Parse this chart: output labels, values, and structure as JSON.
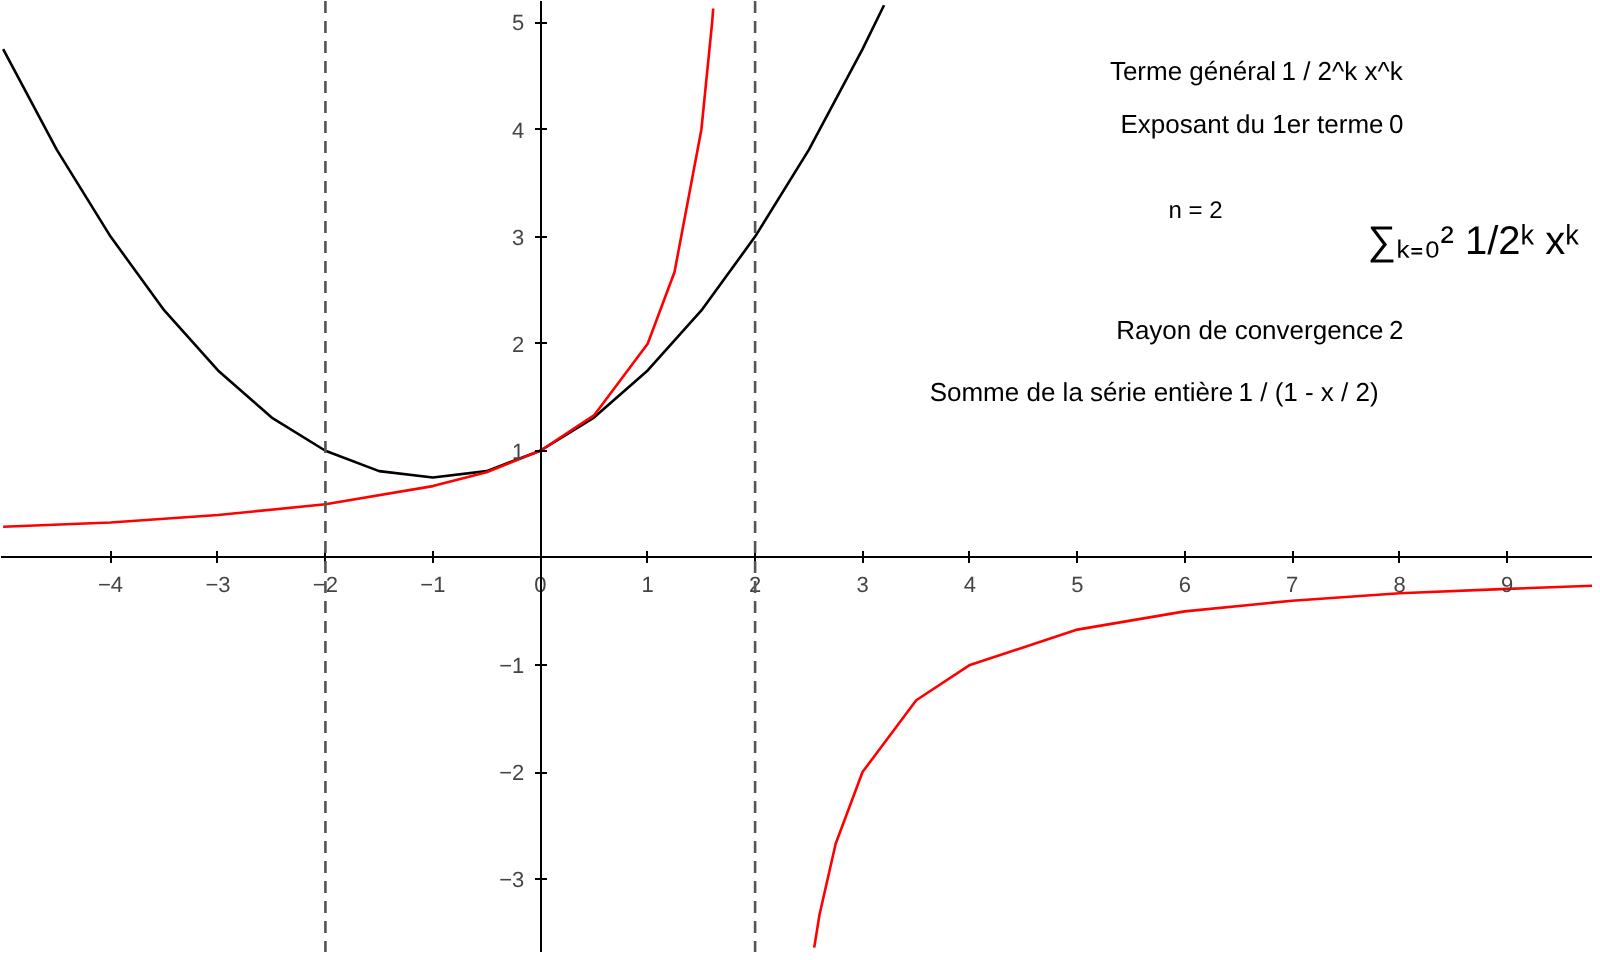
{
  "chart_data": {
    "type": "line",
    "xlim": [
      -5.02,
      9.8
    ],
    "ylim": [
      -3.69,
      5.2
    ],
    "xticks": [
      {
        "value": -4,
        "label": "−4"
      },
      {
        "value": -3,
        "label": "−3"
      },
      {
        "value": -2,
        "label": "−2"
      },
      {
        "value": -1,
        "label": "−1"
      },
      0,
      1,
      2,
      3,
      4,
      5,
      6,
      7,
      8,
      9
    ],
    "yticks": [
      {
        "value": -3,
        "label": "−3"
      },
      {
        "value": -2,
        "label": "−2"
      },
      {
        "value": -1,
        "label": "−1"
      },
      1,
      2,
      3,
      4,
      5
    ],
    "grid": false,
    "marker": "none",
    "line_style": "solid",
    "series": [
      {
        "color": "#000000",
        "x": [
          -5,
          -4.5,
          -4,
          -3.5,
          -3,
          -2.5,
          -2,
          -1.5,
          -1,
          -0.5,
          0,
          0.5,
          1,
          1.5,
          2,
          2.5,
          3,
          3.2
        ],
        "values": [
          4.75,
          3.81,
          3,
          2.31,
          1.75,
          1.31,
          1,
          0.81,
          0.75,
          0.81,
          1,
          1.31,
          1.75,
          2.31,
          3,
          3.81,
          4.75,
          5.16
        ]
      },
      {
        "color": "#ff0000",
        "x": [
          -5,
          -4,
          -3,
          -2,
          -1,
          -0.5,
          0,
          0.5,
          1,
          1.25,
          1.5,
          1.6,
          1.61,
          2,
          2.55,
          2.6,
          2.75,
          3,
          3.5,
          4,
          5,
          6,
          7,
          8,
          9,
          9.8
        ],
        "values": [
          0.29,
          0.33,
          0.4,
          0.5,
          0.67,
          0.8,
          1,
          1.33,
          2,
          2.67,
          4,
          5,
          5.13,
          null,
          -3.64,
          -3.33,
          -2.67,
          -2,
          -1.33,
          -1,
          -0.67,
          -0.5,
          -0.4,
          -0.33,
          -0.29,
          -0.26
        ]
      }
    ],
    "ref_lines": [
      {
        "axis": "x",
        "value": -2,
        "color": "#555555",
        "line_style": "dashed"
      },
      {
        "axis": "x",
        "value": 2,
        "color": "#555555",
        "line_style": "dashed"
      }
    ],
    "annotations": [
      "Terme général",
      "1 / 2^k x^k",
      "Exposant du 1er terme",
      "0",
      "n = 2",
      "∑ₖ₌₀² 1/2ᵏ xᵏ",
      "Rayon de convergence",
      "2",
      "Somme de la série entière",
      "1 / (1 - x / 2)"
    ]
  }
}
